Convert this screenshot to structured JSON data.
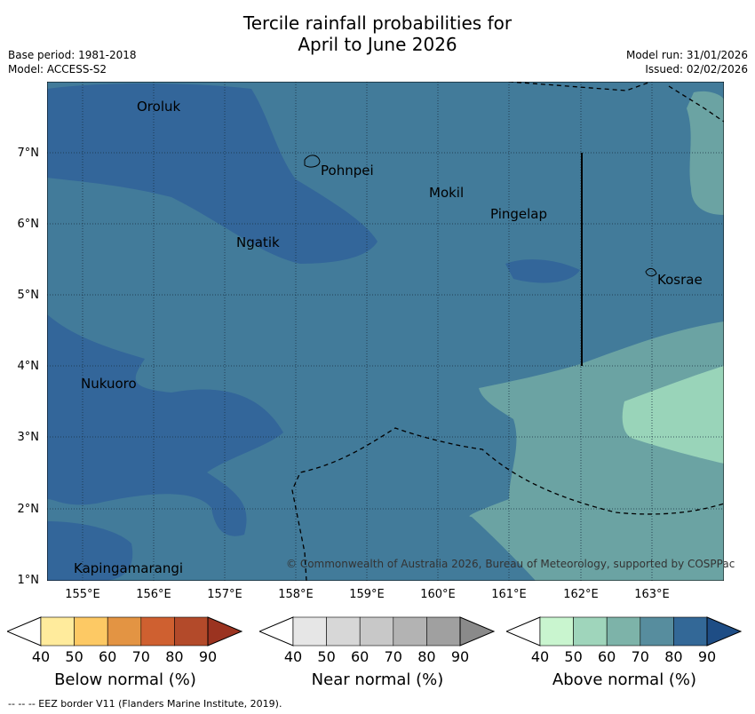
{
  "title_line1": "Tercile rainfall probabilities for",
  "title_line2": "April to June 2026",
  "meta_left": [
    "Base period: 1981-2018",
    "Model: ACCESS-S2"
  ],
  "meta_right": [
    "Model run: 31/01/2026",
    "Issued: 02/02/2026"
  ],
  "lat_labels": [
    "7°N",
    "6°N",
    "5°N",
    "4°N",
    "3°N",
    "2°N",
    "1°N"
  ],
  "lon_labels": [
    "155°E",
    "156°E",
    "157°E",
    "158°E",
    "159°E",
    "160°E",
    "161°E",
    "162°E",
    "163°E"
  ],
  "places": [
    "Oroluk",
    "Pohnpei",
    "Mokil",
    "Pingelap",
    "Ngatik",
    "Kosrae",
    "Nukuoro",
    "Kapingamarangi"
  ],
  "copyright": "© Commonwealth of Australia 2026, Bureau of Meteorology, supported by COSPPac",
  "colorbars": [
    {
      "title": "Below normal (%)",
      "ticks": [
        "40",
        "50",
        "60",
        "70",
        "80",
        "90"
      ],
      "colors": [
        "#ffffff",
        "#ffeb9c",
        "#fdc964",
        "#e39443",
        "#cf6030",
        "#b34a2a",
        "#9b3320"
      ]
    },
    {
      "title": "Near normal (%)",
      "ticks": [
        "40",
        "50",
        "60",
        "70",
        "80",
        "90"
      ],
      "colors": [
        "#ffffff",
        "#e6e6e6",
        "#d7d7d7",
        "#c8c8c8",
        "#b3b3b3",
        "#a0a0a0",
        "#8a8a8a"
      ]
    },
    {
      "title": "Above normal (%)",
      "ticks": [
        "40",
        "50",
        "60",
        "70",
        "80",
        "90"
      ],
      "colors": [
        "#ffffff",
        "#c9f5cf",
        "#9fd5bb",
        "#7db3a9",
        "#578d9e",
        "#336897",
        "#1e4d85"
      ]
    }
  ],
  "footer": "--  --  -- EEZ border V11 (Flanders Marine Institute, 2019)."
}
